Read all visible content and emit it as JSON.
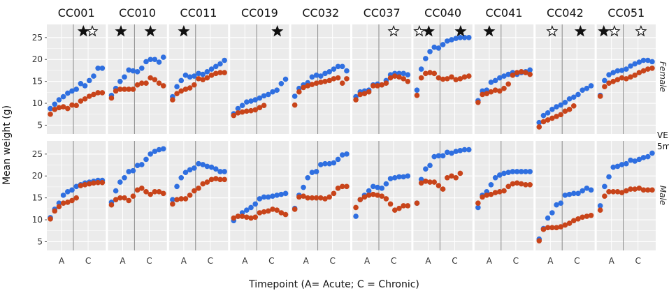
{
  "chart_data": {
    "type": "scatter",
    "panels": [
      "CC001",
      "CC010",
      "CC011",
      "CC019",
      "CC032",
      "CC037",
      "CC040",
      "CC041",
      "CC042",
      "CC051"
    ],
    "rows": [
      "Female",
      "Male"
    ],
    "xlabel": "Timepoint (A= Acute; C = Chronic)",
    "ylabel": "Mean weight (g)",
    "x_tick_labels": [
      "A",
      "C"
    ],
    "y_ticks": [
      5,
      10,
      15,
      20,
      25
    ],
    "ylim": [
      3,
      28
    ],
    "colors": {
      "blue": "#2f6fe0",
      "red": "#c8441a",
      "panel_bg": "#ebebeb",
      "grid": "#ffffff",
      "divider": "#8a8a8a"
    },
    "stars": {
      "Female": [
        [
          "filled",
          "open"
        ],
        [
          "filled",
          "filled"
        ],
        [
          "filled"
        ],
        [
          "filled"
        ],
        [],
        [
          "open"
        ],
        [
          "open",
          "filled",
          "filled"
        ],
        [
          "filled"
        ],
        [
          "open",
          "filled"
        ],
        [
          "filled",
          "open",
          "open"
        ]
      ]
    },
    "side_note": [
      "VE",
      "5m"
    ],
    "series": {
      "Female": {
        "CC001": {
          "blue": [
            8.8,
            9.8,
            10.8,
            11.5,
            12.3,
            12.8,
            13.2,
            14.5,
            14.0,
            15.2,
            16.2,
            18.0,
            18.0
          ],
          "red": [
            7.5,
            8.6,
            9.0,
            9.2,
            8.8,
            9.6,
            9.5,
            10.5,
            11.0,
            11.6,
            12.0,
            12.4,
            12.4
          ]
        },
        "CC010": {
          "blue": [
            11.8,
            13.4,
            15.0,
            16.0,
            17.6,
            17.4,
            17.2,
            18.0,
            19.5,
            20.0,
            20.0,
            19.4,
            20.5
          ],
          "red": [
            11.2,
            12.8,
            13.2,
            13.2,
            13.2,
            13.2,
            14.2,
            14.6,
            14.6,
            15.8,
            15.4,
            14.6,
            14.0
          ]
        },
        "CC011": {
          "blue": [
            11.5,
            13.8,
            15.2,
            16.4,
            16.0,
            16.2,
            16.8,
            16.6,
            17.2,
            17.8,
            18.4,
            19.0,
            19.8
          ],
          "red": [
            10.8,
            12.2,
            12.8,
            13.2,
            13.5,
            14.2,
            15.6,
            15.4,
            15.8,
            16.4,
            16.8,
            17.0,
            17.0
          ]
        },
        "CC019": {
          "blue": [
            7.6,
            8.8,
            9.5,
            10.3,
            10.5,
            10.8,
            11.2,
            11.7,
            12.0,
            12.6,
            13.0,
            14.5,
            15.5
          ],
          "red": [
            7.2,
            7.8,
            8.0,
            8.2,
            8.3,
            8.5,
            9.0,
            9.5
          ]
        },
        "CC032": {
          "blue": [
            11.6,
            13.4,
            14.2,
            14.7,
            16.0,
            16.4,
            16.2,
            16.8,
            17.2,
            17.8,
            18.4,
            18.4,
            17.4
          ],
          "red": [
            9.6,
            12.6,
            13.6,
            14.0,
            14.3,
            14.6,
            14.8,
            15.0,
            15.2,
            15.6,
            15.8,
            14.6,
            15.6
          ]
        },
        "CC037": {
          "blue": [
            11.5,
            12.6,
            12.8,
            13.0,
            14.2,
            14.4,
            14.2,
            15.2,
            16.5,
            16.8,
            16.8,
            16.8,
            16.5
          ],
          "red": [
            10.8,
            12.0,
            12.2,
            12.6,
            14.0,
            14.0,
            14.2,
            14.6,
            15.8,
            16.2,
            16.0,
            15.6,
            15.0
          ]
        },
        "CC040": {
          "blue": [
            13.0,
            17.8,
            20.2,
            21.8,
            22.8,
            22.6,
            23.4,
            24.2,
            24.5,
            24.8,
            25.0,
            25.0,
            25.0
          ],
          "red": [
            11.8,
            15.8,
            16.8,
            17.0,
            16.8,
            15.8,
            15.5,
            15.6,
            16.0,
            15.4,
            15.6,
            16.0,
            16.2
          ]
        },
        "CC041": {
          "blue": [
            10.6,
            12.8,
            13.0,
            14.8,
            15.2,
            15.8,
            16.2,
            16.6,
            17.0,
            16.6,
            17.0,
            17.2,
            17.6
          ],
          "red": [
            10.2,
            12.0,
            12.2,
            12.6,
            13.0,
            12.8,
            13.4,
            14.4,
            16.4,
            17.0,
            17.2,
            17.0,
            16.6
          ]
        },
        "CC042": {
          "blue": [
            5.6,
            7.2,
            7.8,
            8.6,
            9.2,
            9.6,
            10.2,
            11.0,
            11.4,
            12.0,
            13.0,
            13.4,
            14.0
          ],
          "red": [
            4.6,
            5.8,
            6.2,
            6.6,
            7.0,
            7.4,
            8.2,
            8.6,
            9.4
          ]
        },
        "CC051": {
          "blue": [
            11.8,
            15.2,
            16.5,
            17.0,
            17.4,
            17.5,
            17.8,
            18.5,
            19.0,
            19.4,
            19.8,
            19.8,
            19.5
          ],
          "red": [
            11.6,
            13.8,
            14.6,
            15.0,
            15.4,
            15.8,
            15.6,
            16.0,
            16.4,
            17.0,
            17.4,
            17.8,
            18.0
          ]
        }
      },
      "Male": {
        "CC001": {
          "blue": [
            10.5,
            12.4,
            13.8,
            15.6,
            16.4,
            16.8,
            17.6,
            18.0,
            18.4,
            18.6,
            18.8,
            19.0,
            19.0
          ],
          "red": [
            10.2,
            12.0,
            13.0,
            13.8,
            14.0,
            14.4,
            15.0,
            17.8,
            18.0,
            18.2,
            18.4,
            18.5,
            18.5
          ]
        },
        "CC010": {
          "blue": [
            14.0,
            16.6,
            18.6,
            19.6,
            21.0,
            21.2,
            22.4,
            22.6,
            23.8,
            25.0,
            25.6,
            26.0,
            26.2
          ],
          "red": [
            13.4,
            14.6,
            15.0,
            15.0,
            14.4,
            15.4,
            16.8,
            17.2,
            16.4,
            15.8,
            16.4,
            16.4,
            16.0
          ]
        },
        "CC011": {
          "blue": [
            14.6,
            17.6,
            19.6,
            20.8,
            21.4,
            21.8,
            22.8,
            22.6,
            22.2,
            22.0,
            21.6,
            21.0,
            21.0
          ],
          "red": [
            13.6,
            14.6,
            14.8,
            14.8,
            15.6,
            16.6,
            17.2,
            18.2,
            18.6,
            19.2,
            19.4,
            19.2,
            19.2
          ]
        },
        "CC019": {
          "blue": [
            9.8,
            10.8,
            11.6,
            12.2,
            12.8,
            13.6,
            14.8,
            15.2,
            15.2,
            15.4,
            15.6,
            15.8,
            16.0
          ],
          "red": [
            10.4,
            10.8,
            10.8,
            10.6,
            10.4,
            10.6,
            11.6,
            11.8,
            12.0,
            12.4,
            12.2,
            11.6,
            11.2
          ]
        },
        "CC032": {
          "blue": [
            12.6,
            15.6,
            17.4,
            19.6,
            20.8,
            21.0,
            22.6,
            22.8,
            22.8,
            23.0,
            23.8,
            24.8,
            25.0
          ],
          "red": [
            12.4,
            15.2,
            15.4,
            15.0,
            15.0,
            15.0,
            15.0,
            14.8,
            15.2,
            16.0,
            17.2,
            17.6,
            17.6
          ]
        },
        "CC037": {
          "blue": [
            10.8,
            14.6,
            15.6,
            16.6,
            17.6,
            17.4,
            17.2,
            18.2,
            19.4,
            19.6,
            19.8,
            19.8,
            20.0
          ],
          "red": [
            12.8,
            14.6,
            15.2,
            15.6,
            15.8,
            15.6,
            15.4,
            14.8,
            13.6,
            12.2,
            12.6,
            13.2,
            13.2
          ]
        },
        "CC040": {
          "blue": [
            13.8,
            19.2,
            21.6,
            22.4,
            24.4,
            24.6,
            24.6,
            25.4,
            25.2,
            25.6,
            25.8,
            26.0,
            26.0
          ],
          "red": [
            13.8,
            18.4,
            18.8,
            18.6,
            18.6,
            17.8,
            17.0,
            19.6,
            20.0,
            19.6,
            20.6
          ]
        },
        "CC041": {
          "blue": [
            12.8,
            15.6,
            16.4,
            18.0,
            19.6,
            20.2,
            20.6,
            20.8,
            21.0,
            21.0,
            21.0,
            21.0,
            21.0
          ],
          "red": [
            13.8,
            15.2,
            15.6,
            15.8,
            16.2,
            16.4,
            16.6,
            17.6,
            18.2,
            18.4,
            18.2,
            18.0,
            18.0
          ]
        },
        "CC042": {
          "blue": [
            5.6,
            8.0,
            10.4,
            11.6,
            13.4,
            13.8,
            15.6,
            15.8,
            16.0,
            16.0,
            16.6,
            17.2,
            16.8
          ],
          "red": [
            5.2,
            7.8,
            8.2,
            8.2,
            8.2,
            8.4,
            8.8,
            9.2,
            9.8,
            10.2,
            10.6,
            10.8,
            11.0
          ]
        },
        "CC051": {
          "blue": [
            13.2,
            17.6,
            19.8,
            22.0,
            22.2,
            22.6,
            22.8,
            23.6,
            23.4,
            23.8,
            24.2,
            24.4,
            25.2
          ],
          "red": [
            12.2,
            15.4,
            16.4,
            16.4,
            16.4,
            16.2,
            16.6,
            17.0,
            17.0,
            17.2,
            16.8,
            16.8,
            16.8
          ]
        }
      }
    }
  }
}
